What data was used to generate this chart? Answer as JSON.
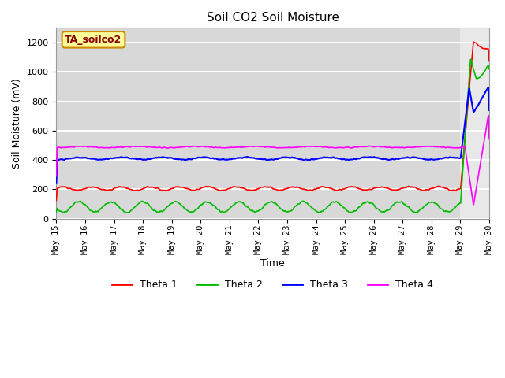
{
  "title": "Soil CO2 Soil Moisture",
  "xlabel": "Time",
  "ylabel": "Soil Moisture (mV)",
  "legend_label": "TA_soilco2",
  "series_names": [
    "Theta 1",
    "Theta 2",
    "Theta 3",
    "Theta 4"
  ],
  "series_colors": [
    "#ff0000",
    "#00bb00",
    "#0000ff",
    "#ff00ff"
  ],
  "ylim": [
    0,
    1300
  ],
  "yticks": [
    0,
    200,
    400,
    600,
    800,
    1000,
    1200
  ],
  "start_day": 15,
  "end_day": 30,
  "spike_day": 29.0,
  "background_color": "#d8d8d8",
  "spike_bg_color": "#e8e8e8",
  "grid_color": "#ffffff",
  "theta1_base": 205,
  "theta2_base": 80,
  "theta3_base": 410,
  "theta4_base": 487,
  "figsize": [
    6.4,
    4.8
  ],
  "dpi": 100
}
